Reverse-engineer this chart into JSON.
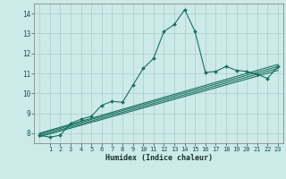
{
  "xlabel": "Humidex (Indice chaleur)",
  "bg_color": "#cceae8",
  "grid_color": "#aaccca",
  "line_color": "#1a7060",
  "spine_color": "#aaaaaa",
  "xlim": [
    -0.5,
    23.5
  ],
  "ylim": [
    7.5,
    14.5
  ],
  "yticks": [
    8,
    9,
    10,
    11,
    12,
    13,
    14
  ],
  "xticks": [
    1,
    2,
    3,
    4,
    5,
    6,
    7,
    8,
    9,
    10,
    11,
    12,
    13,
    14,
    15,
    16,
    17,
    18,
    19,
    20,
    21,
    22,
    23
  ],
  "main_series": [
    [
      0,
      7.9
    ],
    [
      1,
      7.8
    ],
    [
      2,
      7.9
    ],
    [
      3,
      8.5
    ],
    [
      4,
      8.7
    ],
    [
      5,
      8.85
    ],
    [
      6,
      9.4
    ],
    [
      7,
      9.6
    ],
    [
      8,
      9.55
    ],
    [
      9,
      10.4
    ],
    [
      10,
      11.25
    ],
    [
      11,
      11.75
    ],
    [
      12,
      13.1
    ],
    [
      13,
      13.45
    ],
    [
      14,
      14.2
    ],
    [
      15,
      13.1
    ],
    [
      16,
      11.05
    ],
    [
      17,
      11.1
    ],
    [
      18,
      11.35
    ],
    [
      19,
      11.15
    ],
    [
      20,
      11.1
    ],
    [
      21,
      10.95
    ],
    [
      22,
      10.75
    ],
    [
      23,
      11.35
    ]
  ],
  "linear_series": [
    [
      [
        0,
        8.0
      ],
      [
        23,
        11.45
      ]
    ],
    [
      [
        0,
        7.95
      ],
      [
        23,
        11.35
      ]
    ],
    [
      [
        0,
        7.88
      ],
      [
        23,
        11.25
      ]
    ],
    [
      [
        0,
        7.82
      ],
      [
        23,
        11.15
      ]
    ]
  ]
}
